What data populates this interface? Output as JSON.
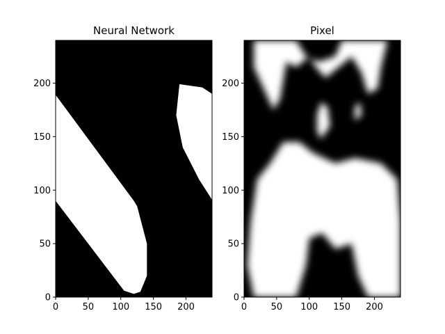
{
  "chart_data": [
    {
      "type": "heatmap",
      "title": "Neural Network",
      "xlabel": "",
      "ylabel": "",
      "xlim": [
        0,
        240
      ],
      "ylim": [
        0,
        240
      ],
      "x_ticks": [
        0,
        50,
        100,
        150,
        200
      ],
      "y_ticks": [
        0,
        50,
        100,
        150,
        200
      ],
      "x_tick_labels": [
        "0",
        "50",
        "100",
        "150",
        "200"
      ],
      "y_tick_labels": [
        "0",
        "50",
        "100",
        "150",
        "200"
      ],
      "colormap": "gray",
      "background_value": "black",
      "white_regions": [
        {
          "shape": "band",
          "points": [
            [
              0,
              189
            ],
            [
              0,
              90
            ],
            [
              105,
              6
            ],
            [
              120,
              3
            ],
            [
              130,
              5
            ],
            [
              140,
              20
            ],
            [
              140,
              50
            ],
            [
              125,
              85
            ],
            [
              120,
              90
            ],
            [
              0,
              189
            ]
          ]
        },
        {
          "shape": "band",
          "points": [
            [
              190,
              199
            ],
            [
              225,
              196
            ],
            [
              240,
              190
            ],
            [
              240,
              91
            ],
            [
              220,
              110
            ],
            [
              195,
              140
            ],
            [
              185,
              170
            ],
            [
              190,
              199
            ]
          ]
        }
      ]
    },
    {
      "type": "heatmap",
      "title": "Pixel",
      "xlabel": "",
      "ylabel": "",
      "xlim": [
        0,
        240
      ],
      "ylim": [
        0,
        240
      ],
      "x_ticks": [
        0,
        50,
        100,
        150,
        200
      ],
      "y_ticks": [
        0,
        50,
        100,
        150,
        200
      ],
      "x_tick_labels": [
        "0",
        "50",
        "100",
        "150",
        "200"
      ],
      "y_tick_labels": [
        "0",
        "50",
        "100",
        "150",
        "200"
      ],
      "colormap": "gray",
      "background_value": "black",
      "white_regions": [
        {
          "shape": "blob",
          "points": [
            [
              15,
              0
            ],
            [
              80,
              0
            ],
            [
              95,
              30
            ],
            [
              100,
              55
            ],
            [
              120,
              60
            ],
            [
              140,
              45
            ],
            [
              165,
              50
            ],
            [
              175,
              20
            ],
            [
              190,
              0
            ],
            [
              240,
              0
            ],
            [
              240,
              70
            ],
            [
              235,
              110
            ],
            [
              210,
              125
            ],
            [
              170,
              130
            ],
            [
              140,
              125
            ],
            [
              105,
              135
            ],
            [
              85,
              145
            ],
            [
              60,
              145
            ],
            [
              40,
              125
            ],
            [
              20,
              110
            ],
            [
              10,
              70
            ],
            [
              5,
              30
            ],
            [
              15,
              0
            ]
          ]
        },
        {
          "shape": "blob",
          "points": [
            [
              15,
              240
            ],
            [
              80,
              240
            ],
            [
              95,
              225
            ],
            [
              115,
              220
            ],
            [
              140,
              225
            ],
            [
              150,
              240
            ],
            [
              220,
              240
            ],
            [
              210,
              215
            ],
            [
              205,
              195
            ],
            [
              190,
              190
            ],
            [
              180,
              210
            ],
            [
              165,
              225
            ],
            [
              145,
              215
            ],
            [
              125,
              205
            ],
            [
              110,
              215
            ],
            [
              100,
              225
            ],
            [
              80,
              215
            ],
            [
              65,
              220
            ],
            [
              55,
              185
            ],
            [
              45,
              175
            ],
            [
              30,
              195
            ],
            [
              15,
              215
            ],
            [
              15,
              240
            ]
          ]
        },
        {
          "shape": "blob",
          "points": [
            [
              118,
              148
            ],
            [
              132,
              160
            ],
            [
              128,
              178
            ],
            [
              118,
              182
            ],
            [
              112,
              170
            ],
            [
              112,
              155
            ],
            [
              118,
              148
            ]
          ]
        },
        {
          "shape": "blob",
          "points": [
            [
              170,
              165
            ],
            [
              180,
              170
            ],
            [
              178,
              182
            ],
            [
              170,
              178
            ],
            [
              170,
              165
            ]
          ]
        }
      ]
    }
  ]
}
